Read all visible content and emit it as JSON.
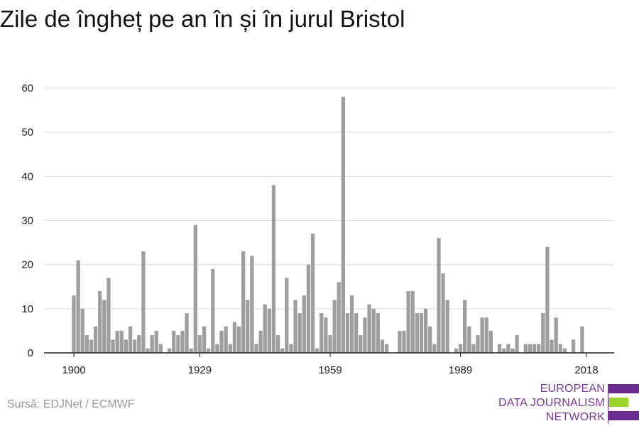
{
  "chart_data": {
    "type": "bar",
    "title": "Zile de îngheț pe an în și în jurul Bristol",
    "xlabel": "",
    "ylabel": "",
    "ylim": [
      0,
      60
    ],
    "yticks": [
      0,
      10,
      20,
      30,
      40,
      50,
      60
    ],
    "xticks": [
      1900,
      1929,
      1959,
      1989,
      2018
    ],
    "grid": true,
    "bar_color": "#9e9e9e",
    "x": [
      1900,
      1901,
      1902,
      1903,
      1904,
      1905,
      1906,
      1907,
      1908,
      1909,
      1910,
      1911,
      1912,
      1913,
      1914,
      1915,
      1916,
      1917,
      1918,
      1919,
      1920,
      1921,
      1922,
      1923,
      1924,
      1925,
      1926,
      1927,
      1928,
      1929,
      1930,
      1931,
      1932,
      1933,
      1934,
      1935,
      1936,
      1937,
      1938,
      1939,
      1940,
      1941,
      1942,
      1943,
      1944,
      1945,
      1946,
      1947,
      1948,
      1949,
      1950,
      1951,
      1952,
      1953,
      1954,
      1955,
      1956,
      1957,
      1958,
      1959,
      1960,
      1961,
      1962,
      1963,
      1964,
      1965,
      1966,
      1967,
      1968,
      1969,
      1970,
      1971,
      1972,
      1973,
      1974,
      1975,
      1976,
      1977,
      1978,
      1979,
      1980,
      1981,
      1982,
      1983,
      1984,
      1985,
      1986,
      1987,
      1988,
      1989,
      1990,
      1991,
      1992,
      1993,
      1994,
      1995,
      1996,
      1997,
      1998,
      1999,
      2000,
      2001,
      2002,
      2003,
      2004,
      2005,
      2006,
      2007,
      2008,
      2009,
      2010,
      2011,
      2012,
      2013,
      2014,
      2015,
      2016,
      2017,
      2018
    ],
    "values": [
      13,
      21,
      10,
      4,
      3,
      6,
      14,
      12,
      17,
      3,
      5,
      5,
      3,
      6,
      3,
      4,
      23,
      1,
      4,
      5,
      2,
      0,
      1,
      5,
      4,
      5,
      9,
      1,
      29,
      4,
      6,
      1,
      19,
      2,
      5,
      6,
      2,
      7,
      6,
      23,
      12,
      22,
      2,
      5,
      11,
      10,
      38,
      4,
      1,
      17,
      2,
      12,
      9,
      13,
      20,
      27,
      1,
      9,
      8,
      4,
      12,
      16,
      58,
      9,
      13,
      9,
      4,
      8,
      11,
      10,
      9,
      3,
      2,
      0,
      0,
      5,
      5,
      14,
      14,
      9,
      9,
      10,
      6,
      2,
      26,
      18,
      12,
      0,
      1,
      2,
      12,
      6,
      2,
      4,
      8,
      8,
      5,
      0,
      2,
      1,
      2,
      1,
      4,
      0,
      2,
      2,
      2,
      2,
      9,
      24,
      3,
      8,
      2,
      1,
      0,
      3,
      0,
      6,
      0
    ]
  },
  "source": "Sursă: EDJNet / ECMWF",
  "logo": {
    "line1": "EUROPEAN",
    "line2": "DATA JOURNALISM",
    "line3": "NETWORK"
  },
  "colors": {
    "logo_purple": "#6a2c91",
    "logo_green": "#9bd42b",
    "grid": "#dddddd",
    "axis": "#222222"
  }
}
